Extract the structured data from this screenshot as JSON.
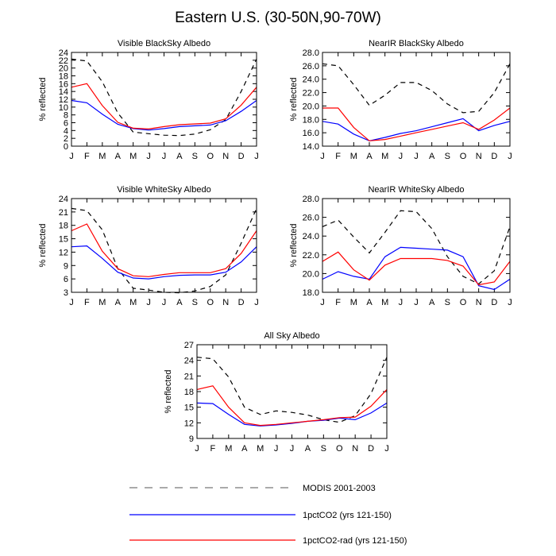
{
  "figure": {
    "title": "Eastern U.S. (30-50N,90-70W)"
  },
  "months": [
    "J",
    "F",
    "M",
    "A",
    "M",
    "J",
    "J",
    "A",
    "S",
    "O",
    "N",
    "D",
    "J"
  ],
  "colors": {
    "modis": "#000000",
    "ctrl": "#0000ff",
    "rad": "#ff0000"
  },
  "legend": {
    "entries": [
      {
        "key": "modis",
        "label": "MODIS 2001-2003",
        "style": "dashed"
      },
      {
        "key": "ctrl",
        "label": "1pctCO2 (yrs 121-150)",
        "style": "solid"
      },
      {
        "key": "rad",
        "label": "1pctCO2-rad (yrs 121-150)",
        "style": "solid"
      }
    ]
  },
  "chart_data": [
    {
      "type": "line",
      "title": "Visible BlackSky Albedo",
      "ylabel": "% reflected",
      "ylim": [
        0,
        24
      ],
      "yticks": [
        0,
        2,
        4,
        6,
        8,
        10,
        12,
        14,
        16,
        18,
        20,
        22,
        24
      ],
      "ytick_labels": [
        "0",
        "2",
        "4",
        "6",
        "8",
        "10",
        "12",
        "14",
        "16",
        "18",
        "20",
        "22",
        "24"
      ],
      "x": [
        "J",
        "F",
        "M",
        "A",
        "M",
        "J",
        "J",
        "A",
        "S",
        "O",
        "N",
        "D",
        "J"
      ],
      "series": [
        {
          "key": "modis",
          "values": [
            22.3,
            21.8,
            16.5,
            8.5,
            3.6,
            3.2,
            2.8,
            2.7,
            3.1,
            4.2,
            6.8,
            14.0,
            22.3
          ]
        },
        {
          "key": "ctrl",
          "values": [
            11.7,
            11.1,
            8.2,
            5.6,
            4.5,
            4.1,
            4.5,
            5.0,
            5.2,
            5.4,
            6.5,
            8.9,
            11.7
          ]
        },
        {
          "key": "rad",
          "values": [
            15.1,
            16.0,
            10.4,
            6.1,
            4.6,
            4.4,
            5.0,
            5.5,
            5.7,
            5.9,
            7.0,
            10.5,
            15.1
          ]
        }
      ]
    },
    {
      "type": "line",
      "title": "NearIR BlackSky Albedo",
      "ylabel": "% reflected",
      "ylim": [
        14,
        28
      ],
      "yticks": [
        14,
        16,
        18,
        20,
        22,
        24,
        26,
        28
      ],
      "ytick_labels": [
        "14.0",
        "16.0",
        "18.0",
        "20.0",
        "22.0",
        "24.0",
        "26.0",
        "28.0"
      ],
      "x": [
        "J",
        "F",
        "M",
        "A",
        "M",
        "J",
        "J",
        "A",
        "S",
        "O",
        "N",
        "D",
        "J"
      ],
      "series": [
        {
          "key": "modis",
          "values": [
            26.3,
            26.0,
            23.2,
            20.1,
            21.6,
            23.5,
            23.5,
            22.3,
            20.3,
            19.0,
            19.2,
            22.0,
            26.3
          ]
        },
        {
          "key": "ctrl",
          "values": [
            17.7,
            17.3,
            15.8,
            14.8,
            15.3,
            15.9,
            16.3,
            16.9,
            17.5,
            18.1,
            16.3,
            17.1,
            17.7
          ]
        },
        {
          "key": "rad",
          "values": [
            19.7,
            19.7,
            16.8,
            14.8,
            15.0,
            15.5,
            16.0,
            16.5,
            17.0,
            17.5,
            16.5,
            17.9,
            19.7
          ]
        }
      ]
    },
    {
      "type": "line",
      "title": "Visible WhiteSky Albedo",
      "ylabel": "% reflected",
      "ylim": [
        3,
        24
      ],
      "yticks": [
        3,
        6,
        9,
        12,
        15,
        18,
        21,
        24
      ],
      "ytick_labels": [
        "3",
        "6",
        "9",
        "12",
        "15",
        "18",
        "21",
        "24"
      ],
      "x": [
        "J",
        "F",
        "M",
        "A",
        "M",
        "J",
        "J",
        "A",
        "S",
        "O",
        "N",
        "D",
        "J"
      ],
      "series": [
        {
          "key": "modis",
          "values": [
            21.8,
            21.3,
            17.0,
            8.3,
            3.9,
            3.5,
            3.0,
            2.9,
            3.3,
            4.3,
            6.9,
            14.0,
            21.8
          ]
        },
        {
          "key": "ctrl",
          "values": [
            13.2,
            13.4,
            10.6,
            7.5,
            6.2,
            6.0,
            6.5,
            6.8,
            6.9,
            6.9,
            7.5,
            9.8,
            13.2
          ]
        },
        {
          "key": "rad",
          "values": [
            16.8,
            18.3,
            12.2,
            8.3,
            6.7,
            6.5,
            7.0,
            7.4,
            7.4,
            7.4,
            8.3,
            11.7,
            16.8
          ]
        }
      ]
    },
    {
      "type": "line",
      "title": "NearIR WhiteSky Albedo",
      "ylabel": "% reflected",
      "ylim": [
        18,
        28
      ],
      "yticks": [
        18,
        20,
        22,
        24,
        26,
        28
      ],
      "ytick_labels": [
        "18.0",
        "20.0",
        "22.0",
        "24.0",
        "26.0",
        "28.0"
      ],
      "x": [
        "J",
        "F",
        "M",
        "A",
        "M",
        "J",
        "J",
        "A",
        "S",
        "O",
        "N",
        "D",
        "J"
      ],
      "series": [
        {
          "key": "modis",
          "values": [
            25.0,
            25.7,
            23.9,
            22.2,
            24.4,
            26.7,
            26.6,
            24.8,
            21.8,
            19.7,
            18.9,
            20.3,
            25.0
          ]
        },
        {
          "key": "ctrl",
          "values": [
            19.4,
            20.2,
            19.7,
            19.4,
            21.8,
            22.8,
            22.7,
            22.6,
            22.5,
            21.8,
            18.7,
            18.3,
            19.4
          ]
        },
        {
          "key": "rad",
          "values": [
            21.3,
            22.3,
            20.4,
            19.3,
            20.9,
            21.6,
            21.6,
            21.6,
            21.4,
            20.8,
            18.8,
            19.1,
            21.3
          ]
        }
      ]
    },
    {
      "type": "line",
      "title": "All Sky Albedo",
      "ylabel": "% reflected",
      "ylim": [
        9,
        27
      ],
      "yticks": [
        9,
        12,
        15,
        18,
        21,
        24,
        27
      ],
      "ytick_labels": [
        "9",
        "12",
        "15",
        "18",
        "21",
        "24",
        "27"
      ],
      "x": [
        "J",
        "F",
        "M",
        "A",
        "M",
        "J",
        "J",
        "A",
        "S",
        "O",
        "N",
        "D",
        "J"
      ],
      "series": [
        {
          "key": "modis",
          "values": [
            24.6,
            24.3,
            20.8,
            15.0,
            13.6,
            14.3,
            14.0,
            13.5,
            12.6,
            12.1,
            13.4,
            17.6,
            24.6
          ]
        },
        {
          "key": "ctrl",
          "values": [
            15.8,
            15.7,
            13.6,
            11.7,
            11.4,
            11.6,
            11.9,
            12.3,
            12.5,
            12.9,
            12.6,
            13.9,
            15.8
          ]
        },
        {
          "key": "rad",
          "values": [
            18.4,
            19.1,
            15.0,
            12.0,
            11.5,
            11.7,
            12.0,
            12.3,
            12.6,
            13.0,
            13.1,
            15.2,
            18.4
          ]
        }
      ]
    }
  ]
}
